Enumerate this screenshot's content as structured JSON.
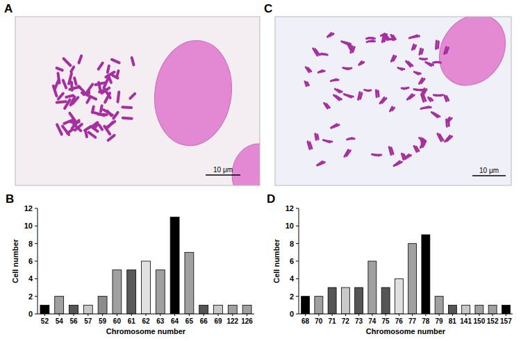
{
  "panels": [
    {
      "label": "A",
      "scale_bar": "10 μm"
    },
    {
      "label": "B"
    },
    {
      "label": "C",
      "scale_bar": "10 μm"
    },
    {
      "label": "D"
    }
  ],
  "chart_data": [
    {
      "type": "bar",
      "x_label": "Chromosome number",
      "y_label": "Cell number",
      "categories": [
        "52",
        "54",
        "56",
        "57",
        "59",
        "60",
        "61",
        "62",
        "63",
        "64",
        "65",
        "66",
        "69",
        "122",
        "126"
      ],
      "values": [
        1,
        2,
        1,
        1,
        2,
        5,
        5,
        6,
        5,
        11,
        7,
        1,
        1,
        1,
        1
      ],
      "colors": [
        "#000000",
        "#a0a0a0",
        "#555555",
        "#c8c8c8",
        "#8c8c8c",
        "#a0a0a0",
        "#5a5a5a",
        "#e0e0e0",
        "#a0a0a0",
        "#000000",
        "#a0a0a0",
        "#555555",
        "#c8c8c8",
        "#a0a0a0",
        "#a0a0a0"
      ],
      "ylim": [
        0,
        12
      ],
      "yticks": [
        0,
        2,
        4,
        6,
        8,
        10,
        12
      ],
      "grid": false
    },
    {
      "type": "bar",
      "x_label": "Chromosome number",
      "y_label": "Cell number",
      "categories": [
        "68",
        "70",
        "71",
        "72",
        "73",
        "74",
        "75",
        "76",
        "77",
        "78",
        "79",
        "81",
        "141",
        "150",
        "152",
        "157"
      ],
      "values": [
        2,
        2,
        3,
        3,
        3,
        6,
        3,
        4,
        8,
        9,
        2,
        1,
        1,
        1,
        1,
        1
      ],
      "colors": [
        "#000000",
        "#a0a0a0",
        "#555555",
        "#c8c8c8",
        "#555555",
        "#a0a0a0",
        "#555555",
        "#e0e0e0",
        "#a0a0a0",
        "#000000",
        "#a0a0a0",
        "#555555",
        "#c8c8c8",
        "#a0a0a0",
        "#a0a0a0",
        "#000000"
      ],
      "ylim": [
        0,
        12
      ],
      "yticks": [
        0,
        2,
        4,
        6,
        8,
        10,
        12
      ],
      "grid": false
    }
  ]
}
